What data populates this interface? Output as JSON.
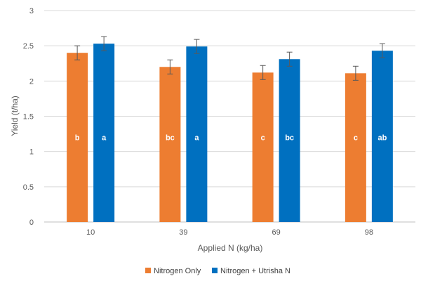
{
  "chart_data": {
    "type": "bar",
    "title": "",
    "xlabel": "Applied N (kg/ha)",
    "ylabel": "Yield (t/ha)",
    "ylim": [
      0,
      3
    ],
    "yticks": [
      "0",
      "0.5",
      "1",
      "1.5",
      "2",
      "2.5",
      "3"
    ],
    "grid": true,
    "legend_position": "bottom",
    "categories": [
      "10",
      "39",
      "69",
      "98"
    ],
    "series": [
      {
        "name": "Nitrogen Only",
        "color": "#ED7D31",
        "values": [
          2.4,
          2.2,
          2.12,
          2.11
        ],
        "errors": [
          0.1,
          0.1,
          0.1,
          0.1
        ],
        "labels": [
          "b",
          "bc",
          "c",
          "c"
        ]
      },
      {
        "name": "Nitrogen + Utrisha N",
        "color": "#0070C0",
        "values": [
          2.53,
          2.49,
          2.31,
          2.43
        ],
        "errors": [
          0.1,
          0.1,
          0.1,
          0.1
        ],
        "labels": [
          "a",
          "a",
          "bc",
          "ab"
        ]
      }
    ]
  }
}
